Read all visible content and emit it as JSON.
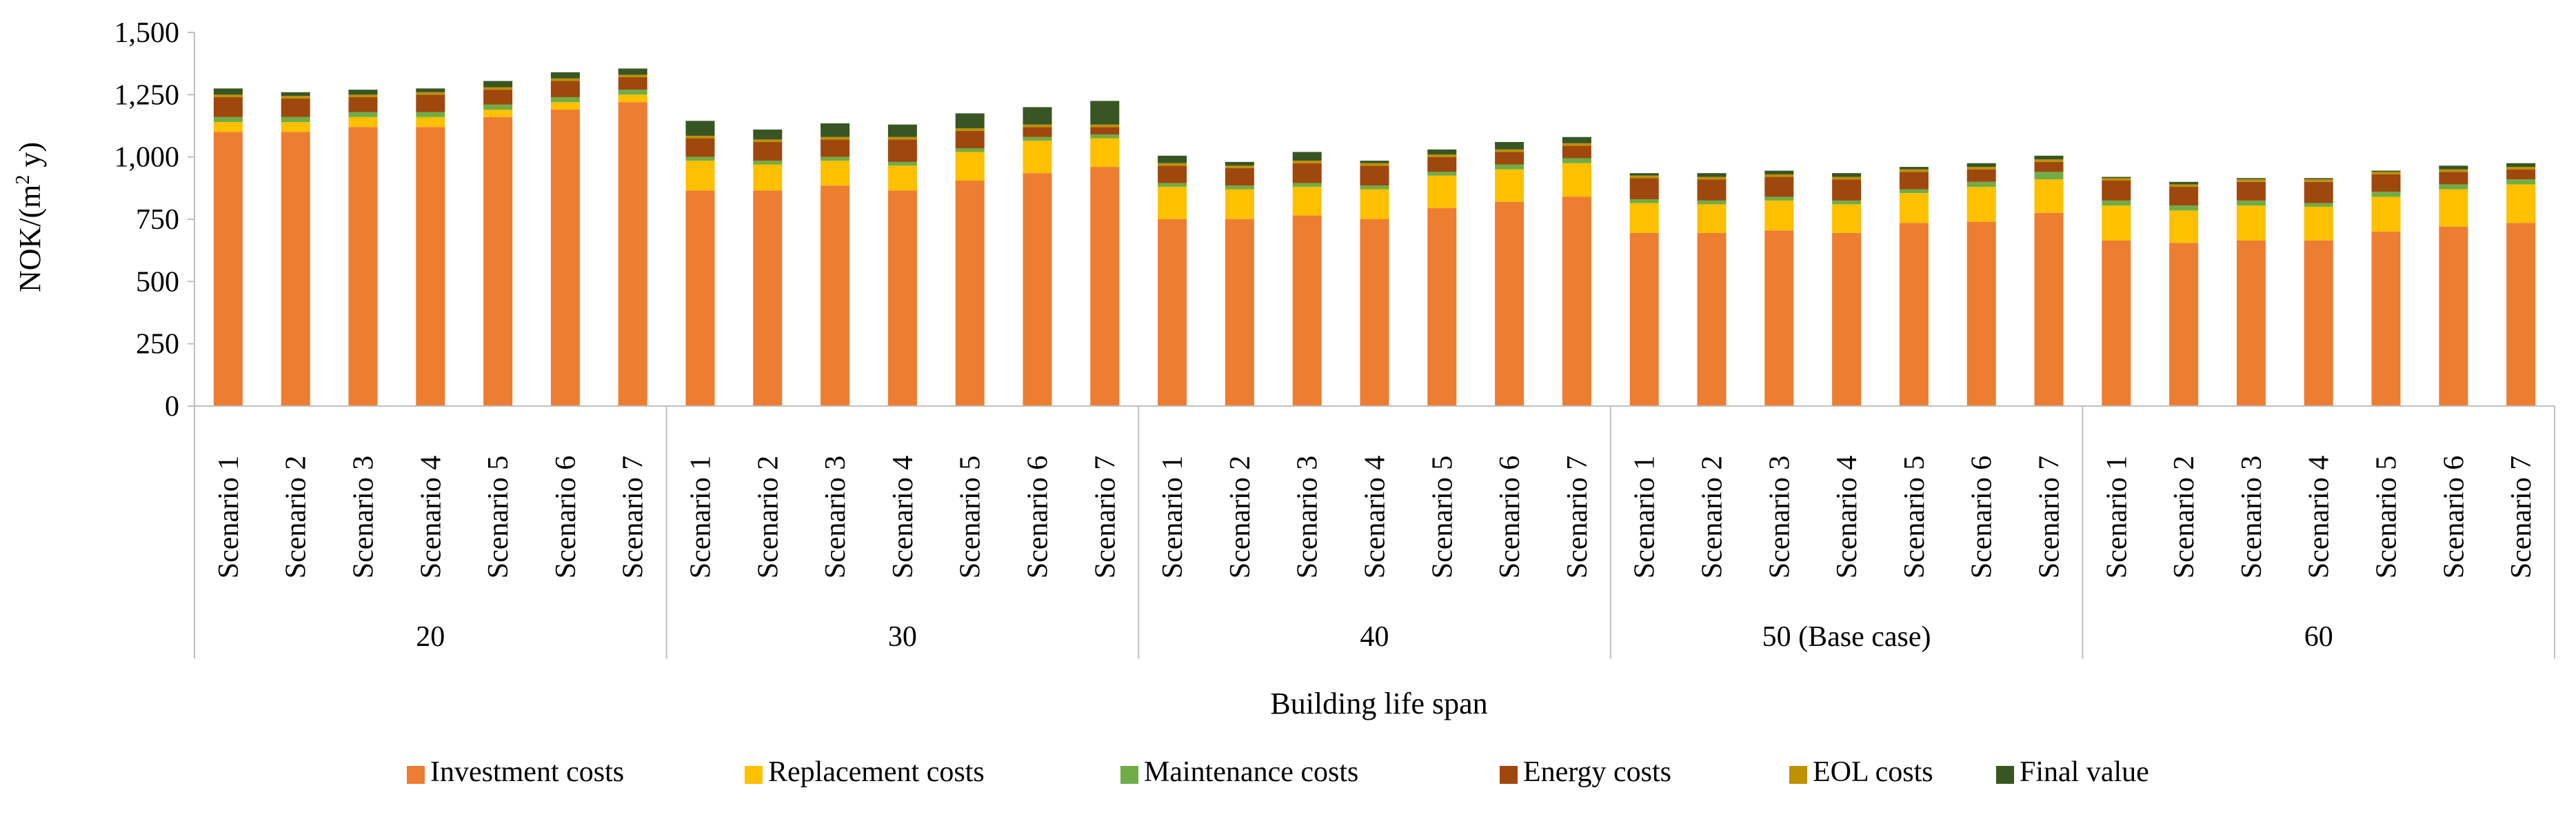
{
  "chart_data": {
    "type": "bar",
    "stacked": true,
    "title": "",
    "ylabel_main": "NOK/(m",
    "ylabel_sup": "2",
    "ylabel_tail": " y)",
    "xlabel": "Building life span",
    "ylim": [
      0,
      1500
    ],
    "yticks": [
      0,
      250,
      500,
      750,
      1000,
      1250,
      1500
    ],
    "ytick_labels": [
      "0",
      "250",
      "500",
      "750",
      "1,000",
      "1,250",
      "1,500"
    ],
    "gridlines": false,
    "legend_position": "bottom",
    "groups": [
      {
        "label": "20",
        "categories": [
          "Scenario 1",
          "Scenario 2",
          "Scenario 3",
          "Scenario 4",
          "Scenario 5",
          "Scenario 6",
          "Scenario 7"
        ]
      },
      {
        "label": "30",
        "categories": [
          "Scenario 1",
          "Scenario 2",
          "Scenario 3",
          "Scenario 4",
          "Scenario 5",
          "Scenario 6",
          "Scenario 7"
        ]
      },
      {
        "label": "40",
        "categories": [
          "Scenario 1",
          "Scenario 2",
          "Scenario 3",
          "Scenario 4",
          "Scenario 5",
          "Scenario 6",
          "Scenario 7"
        ]
      },
      {
        "label": "50 (Base case)",
        "categories": [
          "Scenario 1",
          "Scenario 2",
          "Scenario 3",
          "Scenario 4",
          "Scenario 5",
          "Scenario 6",
          "Scenario 7"
        ]
      },
      {
        "label": "60",
        "categories": [
          "Scenario 1",
          "Scenario 2",
          "Scenario 3",
          "Scenario 4",
          "Scenario 5",
          "Scenario 6",
          "Scenario 7"
        ]
      }
    ],
    "series": [
      {
        "name": "Investment costs",
        "color": "#ED7D31",
        "values": [
          1100,
          1100,
          1120,
          1120,
          1160,
          1190,
          1220,
          865,
          865,
          885,
          865,
          905,
          935,
          960,
          750,
          750,
          765,
          750,
          795,
          820,
          840,
          695,
          695,
          705,
          695,
          735,
          740,
          775,
          665,
          655,
          665,
          665,
          700,
          720,
          735
        ]
      },
      {
        "name": "Replacement costs",
        "color": "#FFC000",
        "values": [
          40,
          40,
          40,
          40,
          30,
          30,
          30,
          120,
          105,
          100,
          100,
          115,
          130,
          115,
          130,
          120,
          115,
          120,
          130,
          130,
          135,
          120,
          115,
          120,
          115,
          120,
          140,
          135,
          140,
          130,
          140,
          135,
          140,
          150,
          155
        ]
      },
      {
        "name": "Maintenance costs",
        "color": "#70AD47",
        "values": [
          20,
          20,
          20,
          20,
          20,
          20,
          20,
          15,
          15,
          15,
          15,
          15,
          15,
          15,
          15,
          15,
          15,
          15,
          15,
          20,
          20,
          15,
          15,
          15,
          15,
          15,
          20,
          30,
          20,
          20,
          20,
          15,
          20,
          20,
          20
        ]
      },
      {
        "name": "Energy costs",
        "color": "#9E480E",
        "values": [
          80,
          75,
          60,
          70,
          60,
          65,
          50,
          75,
          75,
          70,
          90,
          70,
          40,
          30,
          70,
          70,
          80,
          80,
          60,
          50,
          50,
          85,
          85,
          80,
          85,
          70,
          50,
          40,
          80,
          75,
          75,
          85,
          70,
          50,
          40
        ]
      },
      {
        "name": "EOL costs",
        "color": "#BF9000",
        "values": [
          10,
          10,
          10,
          10,
          10,
          10,
          10,
          10,
          10,
          10,
          10,
          10,
          10,
          10,
          10,
          10,
          10,
          10,
          10,
          10,
          10,
          10,
          10,
          10,
          10,
          10,
          10,
          10,
          10,
          10,
          10,
          10,
          10,
          10,
          10
        ]
      },
      {
        "name": "Final value",
        "color": "#375623",
        "values": [
          25,
          15,
          20,
          15,
          25,
          25,
          25,
          60,
          40,
          55,
          50,
          60,
          70,
          95,
          30,
          15,
          35,
          10,
          20,
          30,
          25,
          10,
          15,
          15,
          15,
          10,
          15,
          15,
          5,
          10,
          5,
          5,
          5,
          15,
          15
        ]
      }
    ]
  }
}
